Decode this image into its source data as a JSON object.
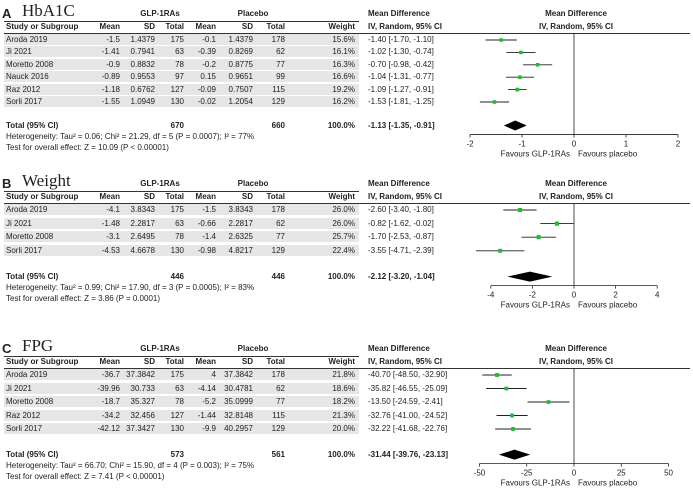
{
  "chart_data": [
    {
      "type": "forest",
      "panel_label": "A",
      "title": "HbA1C",
      "header": {
        "group1": "GLP-1RAs",
        "group2": "Placebo",
        "study": "Study or Subgroup",
        "mean": "Mean",
        "sd": "SD",
        "total": "Total",
        "weight": "Weight",
        "md1": "Mean Difference",
        "md2": "IV, Random, 95% CI"
      },
      "studies": [
        {
          "name": "Aroda 2019",
          "m1": "-1.5",
          "sd1": "1.4379",
          "n1": "175",
          "m2": "-0.1",
          "sd2": "1.4379",
          "n2": "178",
          "weight": "15.6%",
          "ci_text": "-1.40 [-1.70, -1.10]",
          "est": -1.4,
          "lo": -1.7,
          "hi": -1.1
        },
        {
          "name": "Ji 2021",
          "m1": "-1.41",
          "sd1": "0.7941",
          "n1": "63",
          "m2": "-0.39",
          "sd2": "0.8269",
          "n2": "62",
          "weight": "16.1%",
          "ci_text": "-1.02 [-1.30, -0.74]",
          "est": -1.02,
          "lo": -1.3,
          "hi": -0.74
        },
        {
          "name": "Moretto 2008",
          "m1": "-0.9",
          "sd1": "0.8832",
          "n1": "78",
          "m2": "-0.2",
          "sd2": "0.8775",
          "n2": "77",
          "weight": "16.3%",
          "ci_text": "-0.70 [-0.98, -0.42]",
          "est": -0.7,
          "lo": -0.98,
          "hi": -0.42
        },
        {
          "name": "Nauck 2016",
          "m1": "-0.89",
          "sd1": "0.9553",
          "n1": "97",
          "m2": "0.15",
          "sd2": "0.9651",
          "n2": "99",
          "weight": "16.6%",
          "ci_text": "-1.04 [-1.31, -0.77]",
          "est": -1.04,
          "lo": -1.31,
          "hi": -0.77
        },
        {
          "name": "Raz 2012",
          "m1": "-1.18",
          "sd1": "0.6762",
          "n1": "127",
          "m2": "-0.09",
          "sd2": "0.7507",
          "n2": "115",
          "weight": "19.2%",
          "ci_text": "-1.09 [-1.27, -0.91]",
          "est": -1.09,
          "lo": -1.27,
          "hi": -0.91
        },
        {
          "name": "Sorli 2017",
          "m1": "-1.55",
          "sd1": "1.0949",
          "n1": "130",
          "m2": "-0.02",
          "sd2": "1.2054",
          "n2": "129",
          "weight": "16.2%",
          "ci_text": "-1.53 [-1.81, -1.25]",
          "est": -1.53,
          "lo": -1.81,
          "hi": -1.25
        }
      ],
      "total": {
        "label": "Total (95% CI)",
        "n1": "670",
        "n2": "660",
        "weight": "100.0%",
        "ci_text": "-1.13 [-1.35, -0.91]",
        "est": -1.13,
        "lo": -1.35,
        "hi": -0.91
      },
      "heterogeneity": "Heterogeneity: Tau² = 0.06; Chi² = 21.29, df = 5 (P = 0.0007); I² = 77%",
      "overall": "Test for overall effect: Z = 10.09 (P < 0.00001)",
      "axis": {
        "min": -2,
        "max": 2,
        "ticks": [
          -2,
          -1,
          0,
          1,
          2
        ],
        "tick_labels": [
          "-2",
          "-1",
          "0",
          "1",
          "2"
        ]
      },
      "favours_left": "Favours GLP-1RAs",
      "favours_right": "Favours placebo"
    },
    {
      "type": "forest",
      "panel_label": "B",
      "title": "Weight",
      "header": {
        "group1": "GLP-1RAs",
        "group2": "Placebo",
        "study": "Study or Subgroup",
        "mean": "Mean",
        "sd": "SD",
        "total": "Total",
        "weight": "Weight",
        "md1": "Mean Difference",
        "md2": "IV, Random, 95% CI"
      },
      "studies": [
        {
          "name": "Aroda 2019",
          "m1": "-4.1",
          "sd1": "3.8343",
          "n1": "175",
          "m2": "-1.5",
          "sd2": "3.8343",
          "n2": "178",
          "weight": "26.0%",
          "ci_text": "-2.60 [-3.40, -1.80]",
          "est": -2.6,
          "lo": -3.4,
          "hi": -1.8
        },
        {
          "name": "Ji 2021",
          "m1": "-1.48",
          "sd1": "2.2817",
          "n1": "63",
          "m2": "-0.66",
          "sd2": "2.2817",
          "n2": "62",
          "weight": "26.0%",
          "ci_text": "-0.82 [-1.62, -0.02]",
          "est": -0.82,
          "lo": -1.62,
          "hi": -0.02
        },
        {
          "name": "Moretto 2008",
          "m1": "-3.1",
          "sd1": "2.6495",
          "n1": "78",
          "m2": "-1.4",
          "sd2": "2.6325",
          "n2": "77",
          "weight": "25.7%",
          "ci_text": "-1.70 [-2.53, -0.87]",
          "est": -1.7,
          "lo": -2.53,
          "hi": -0.87
        },
        {
          "name": "Sorli 2017",
          "m1": "-4.53",
          "sd1": "4.6678",
          "n1": "130",
          "m2": "-0.98",
          "sd2": "4.8217",
          "n2": "129",
          "weight": "22.4%",
          "ci_text": "-3.55 [-4.71, -2.39]",
          "est": -3.55,
          "lo": -4.71,
          "hi": -2.39
        }
      ],
      "total": {
        "label": "Total (95% CI)",
        "n1": "446",
        "n2": "446",
        "weight": "100.0%",
        "ci_text": "-2.12 [-3.20, -1.04]",
        "est": -2.12,
        "lo": -3.2,
        "hi": -1.04
      },
      "heterogeneity": "Heterogeneity: Tau² = 0.99; Chi² = 17.90, df = 3 (P = 0.0005); I² = 83%",
      "overall": "Test for overall effect: Z = 3.86 (P = 0.0001)",
      "axis": {
        "min": -5,
        "max": 5,
        "ticks": [
          -4,
          -2,
          0,
          2,
          4
        ],
        "tick_labels": [
          "-4",
          "-2",
          "0",
          "2",
          "4"
        ]
      },
      "favours_left": "Favours GLP-1RAs",
      "favours_right": "Favours placebo"
    },
    {
      "type": "forest",
      "panel_label": "C",
      "title": "FPG",
      "header": {
        "group1": "GLP-1RAs",
        "group2": "Placebo",
        "study": "Study or Subgroup",
        "mean": "Mean",
        "sd": "SD",
        "total": "Total",
        "weight": "Weight",
        "md1": "Mean Difference",
        "md2": "IV, Random, 95% CI"
      },
      "studies": [
        {
          "name": "Aroda 2019",
          "m1": "-36.7",
          "sd1": "37.3842",
          "n1": "175",
          "m2": "4",
          "sd2": "37.3842",
          "n2": "178",
          "weight": "21.8%",
          "ci_text": "-40.70 [-48.50, -32.90]",
          "est": -40.7,
          "lo": -48.5,
          "hi": -32.9
        },
        {
          "name": "Ji 2021",
          "m1": "-39.96",
          "sd1": "30.733",
          "n1": "63",
          "m2": "-4.14",
          "sd2": "30.4781",
          "n2": "62",
          "weight": "18.6%",
          "ci_text": "-35.82 [-46.55, -25.09]",
          "est": -35.82,
          "lo": -46.55,
          "hi": -25.09
        },
        {
          "name": "Moretto 2008",
          "m1": "-18.7",
          "sd1": "35.327",
          "n1": "78",
          "m2": "-5.2",
          "sd2": "35.0999",
          "n2": "77",
          "weight": "18.2%",
          "ci_text": "-13.50 [-24.59, -2.41]",
          "est": -13.5,
          "lo": -24.59,
          "hi": -2.41
        },
        {
          "name": "Raz 2012",
          "m1": "-34.2",
          "sd1": "32.456",
          "n1": "127",
          "m2": "-1.44",
          "sd2": "32.8148",
          "n2": "115",
          "weight": "21.3%",
          "ci_text": "-32.76 [-41.00, -24.52]",
          "est": -32.76,
          "lo": -41.0,
          "hi": -24.52
        },
        {
          "name": "Sorli 2017",
          "m1": "-42.12",
          "sd1": "37.3427",
          "n1": "130",
          "m2": "-9.9",
          "sd2": "40.2957",
          "n2": "129",
          "weight": "20.0%",
          "ci_text": "-32.22 [-41.68, -22.76]",
          "est": -32.22,
          "lo": -41.68,
          "hi": -22.76
        }
      ],
      "total": {
        "label": "Total (95% CI)",
        "n1": "573",
        "n2": "561",
        "weight": "100.0%",
        "ci_text": "-31.44 [-39.76, -23.13]",
        "est": -31.44,
        "lo": -39.76,
        "hi": -23.13
      },
      "heterogeneity": "Heterogeneity: Tau² = 66.70; Chi² = 15.90, df = 4 (P = 0.003); I² = 75%",
      "overall": "Test for overall effect: Z = 7.41 (P < 0.00001)",
      "axis": {
        "min": -55,
        "max": 55,
        "ticks": [
          -50,
          -25,
          0,
          25,
          50
        ],
        "tick_labels": [
          "-50",
          "-25",
          "0",
          "25",
          "50"
        ]
      },
      "favours_left": "Favours GLP-1RAs",
      "favours_right": "Favours placebo"
    }
  ]
}
